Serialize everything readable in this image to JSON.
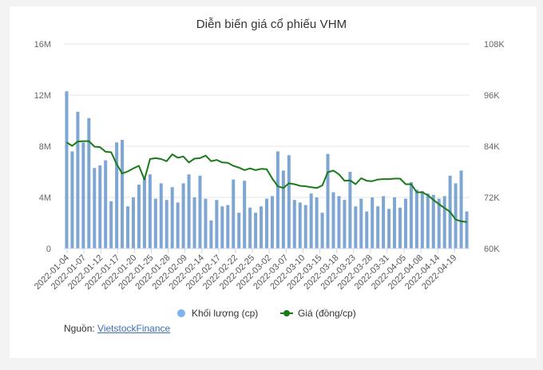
{
  "title": "Diễn biến giá cổ phiếu VHM",
  "legend": {
    "volume_label": "Khối lượng (cp)",
    "price_label": "Giá (đồng/cp)"
  },
  "source": {
    "prefix": "Nguồn: ",
    "link_text": "VietstockFinance"
  },
  "colors": {
    "volume_bar": "#7ea6d3",
    "volume_legend": "#7cb5ec",
    "price_line": "#1a7a1a",
    "gridline": "#e6e6e6",
    "background": "#f3f3f3",
    "card": "#ffffff"
  },
  "chart_data": {
    "type": "bar+line",
    "title": "Diễn biến giá cổ phiếu VHM",
    "xlabel": "",
    "ylabel_left": "Khối lượng (cp)",
    "ylabel_right": "Giá (đồng/cp)",
    "y_left": {
      "min": 0,
      "max": 16000000,
      "ticks": [
        "0",
        "4M",
        "8M",
        "12M",
        "16M"
      ]
    },
    "y_right": {
      "min": 60000,
      "max": 108000,
      "ticks": [
        "60K",
        "72K",
        "84K",
        "96K",
        "108K"
      ]
    },
    "grid": true,
    "legend_position": "bottom",
    "x_tick_labels": [
      "2022-01-04",
      "2022-01-07",
      "2022-01-12",
      "2022-01-17",
      "2022-01-20",
      "2022-01-25",
      "2022-01-28",
      "2022-02-09",
      "2022-02-14",
      "2022-02-17",
      "2022-02-22",
      "2022-02-25",
      "2022-03-02",
      "2022-03-07",
      "2022-03-10",
      "2022-03-15",
      "2022-03-18",
      "2022-03-23",
      "2022-03-28",
      "2022-03-31",
      "2022-04-05",
      "2022-04-08",
      "2022-04-14",
      "2022-04-19"
    ],
    "series": [
      {
        "name": "Khối lượng (cp)",
        "type": "bar",
        "axis": "left",
        "values": [
          12.3,
          7.6,
          10.7,
          8.3,
          10.2,
          6.3,
          6.5,
          6.9,
          3.7,
          8.3,
          8.5,
          3.3,
          4.0,
          5.0,
          5.5,
          5.8,
          3.9,
          5.1,
          3.8,
          4.8,
          3.6,
          5.1,
          5.8,
          4.0,
          5.7,
          3.9,
          2.2,
          3.8,
          3.3,
          3.4,
          5.4,
          2.8,
          5.3,
          3.2,
          2.8,
          3.3,
          3.9,
          4.1,
          7.6,
          6.1,
          7.3,
          3.8,
          3.6,
          3.4,
          4.3,
          4.0,
          2.8,
          7.4,
          4.4,
          4.1,
          3.8,
          6.0,
          3.3,
          3.9,
          2.9,
          4.0,
          3.3,
          4.1,
          3.1,
          4.0,
          3.2,
          3.9,
          5.2,
          4.6,
          4.5,
          4.3,
          4.2,
          3.9,
          4.1,
          5.7,
          5.1,
          6.1,
          2.9
        ],
        "unit": "million shares"
      },
      {
        "name": "Giá (đồng/cp)",
        "type": "line",
        "axis": "right",
        "values": [
          84.9,
          84.1,
          85.1,
          85.2,
          85.2,
          83.9,
          83.8,
          82.7,
          82.6,
          79.8,
          77.6,
          78.1,
          78.8,
          79.4,
          76.2,
          81.0,
          81.2,
          81.0,
          80.5,
          82.1,
          81.3,
          81.6,
          80.2,
          81.1,
          81.2,
          81.8,
          80.5,
          80.8,
          80.2,
          80.1,
          79.4,
          79.0,
          78.4,
          78.8,
          78.4,
          78.7,
          78.6,
          76.4,
          74.6,
          74.2,
          75.3,
          75.1,
          74.7,
          74.6,
          74.4,
          74.2,
          74.8,
          77.9,
          78.3,
          77.4,
          75.9,
          76.0,
          75.1,
          76.5,
          75.9,
          75.8,
          76.2,
          76.3,
          76.3,
          76.4,
          76.4,
          75.1,
          75.1,
          73.2,
          73.2,
          72.5,
          71.4,
          70.4,
          69.5,
          68.6,
          66.8,
          66.4,
          66.2
        ],
        "unit": "thousand VND"
      }
    ]
  }
}
